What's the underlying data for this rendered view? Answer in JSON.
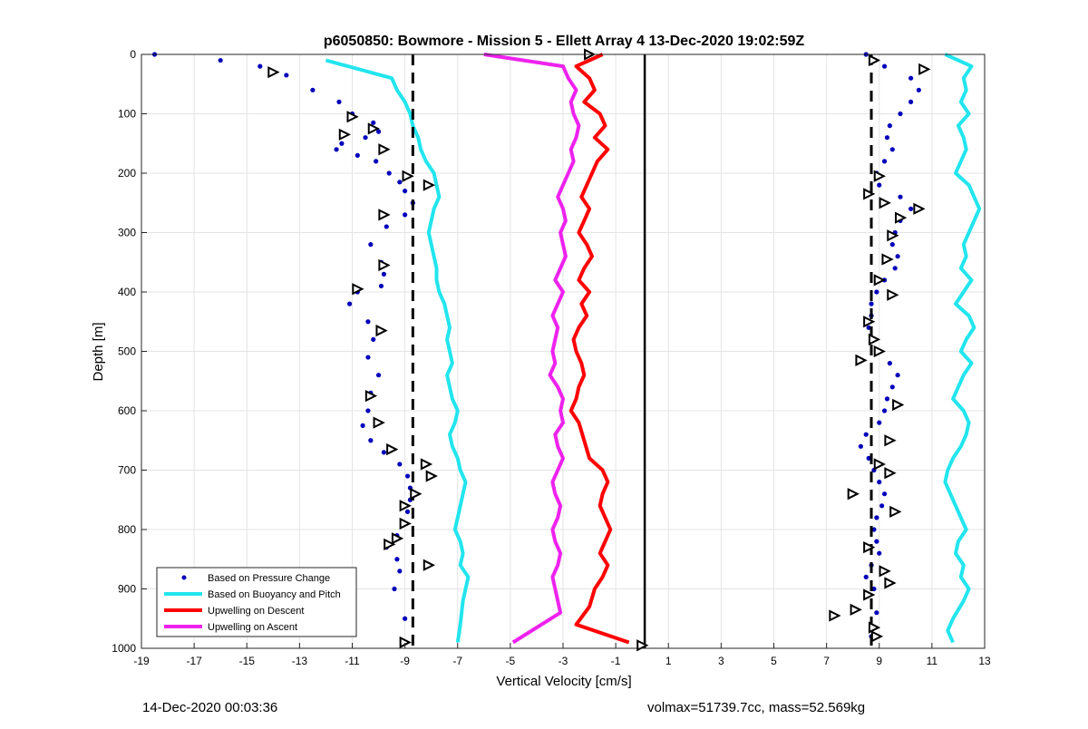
{
  "chart_data": {
    "type": "scatter",
    "title": "p6050850: Bowmore - Mission 5 - Ellett Array 4 13-Dec-2020 19:02:59Z",
    "xlabel": "Vertical Velocity [cm/s]",
    "ylabel": "Depth [m]",
    "xlim": [
      -19,
      13
    ],
    "ylim": [
      0,
      1000
    ],
    "y_reversed": true,
    "grid": true,
    "xticks": [
      -19,
      -17,
      -15,
      -13,
      -11,
      -9,
      -7,
      -5,
      -3,
      -1,
      1,
      3,
      5,
      7,
      9,
      11,
      13
    ],
    "yticks": [
      0,
      100,
      200,
      300,
      400,
      500,
      600,
      700,
      800,
      900,
      1000
    ],
    "legend_position": "bottom-left",
    "series": [
      {
        "name": "Based on Pressure Change",
        "color": "#0000bb",
        "marker": "dot",
        "groups": [
          {
            "x": [
              -18.5,
              -16.0,
              -14.5,
              -13.5,
              -12.5,
              -11.5,
              -11.0,
              -10.2,
              -10.0,
              -10.5,
              -11.4,
              -11.6,
              -10.8,
              -10.1,
              -9.6,
              -9.2,
              -9.0,
              -8.7,
              -9.0,
              -9.7,
              -10.3,
              -9.9,
              -9.8,
              -9.9,
              -10.8,
              -11.1,
              -10.4,
              -10.2,
              -10.4,
              -10.0,
              -10.3,
              -10.4,
              -10.6,
              -10.3,
              -9.8,
              -9.2,
              -8.9,
              -8.8,
              -8.8,
              -8.9,
              -9.0,
              -9.3,
              -9.7,
              -9.3,
              -9.2,
              -9.4,
              -9.0,
              -9.0
            ],
            "y": [
              0,
              10,
              20,
              35,
              60,
              80,
              100,
              115,
              130,
              140,
              150,
              160,
              170,
              180,
              200,
              215,
              230,
              250,
              270,
              290,
              320,
              350,
              370,
              390,
              400,
              420,
              450,
              480,
              510,
              540,
              570,
              600,
              625,
              650,
              670,
              690,
              710,
              730,
              750,
              770,
              790,
              810,
              830,
              850,
              870,
              900,
              950,
              990
            ]
          },
          {
            "x": [
              8.5,
              9.2,
              10.2,
              10.5,
              10.2,
              9.8,
              9.4,
              9.3,
              9.5,
              9.2,
              8.9,
              9.0,
              9.8,
              10.2,
              9.8,
              9.6,
              9.5,
              9.7,
              9.6,
              9.2,
              8.9,
              8.7,
              8.7,
              8.6,
              8.8,
              9.0,
              9.4,
              9.7,
              9.5,
              9.3,
              9.2,
              9.0,
              8.5,
              8.3,
              8.6,
              8.8,
              9.0,
              9.2,
              9.1,
              8.9,
              8.8,
              8.9,
              9.0,
              8.7,
              8.5,
              8.8,
              8.9,
              8.7
            ],
            "y": [
              0,
              20,
              40,
              60,
              80,
              100,
              120,
              140,
              160,
              180,
              200,
              220,
              240,
              260,
              280,
              300,
              320,
              340,
              360,
              380,
              400,
              420,
              440,
              460,
              480,
              500,
              520,
              540,
              560,
              580,
              600,
              620,
              640,
              660,
              680,
              700,
              720,
              740,
              760,
              780,
              800,
              820,
              840,
              860,
              880,
              900,
              940,
              980
            ]
          }
        ]
      },
      {
        "name": "Based on Buoyancy and Pitch",
        "color": "#22e5ee",
        "marker": "line",
        "groups": [
          {
            "x": [
              -12.0,
              -9.5,
              -9.3,
              -9.0,
              -8.8,
              -8.7,
              -8.5,
              -8.4,
              -8.2,
              -7.9,
              -7.8,
              -7.7,
              -7.9,
              -8.0,
              -8.1,
              -8.0,
              -7.9,
              -7.8,
              -7.8,
              -7.7,
              -7.5,
              -7.4,
              -7.3,
              -7.4,
              -7.3,
              -7.2,
              -7.4,
              -7.3,
              -7.2,
              -7.0,
              -7.1,
              -7.3,
              -7.2,
              -7.0,
              -6.9,
              -6.7,
              -6.8,
              -6.9,
              -7.0,
              -7.1,
              -6.9,
              -6.8,
              -6.9,
              -6.6,
              -6.7,
              -6.8,
              -6.9,
              -7.0
            ],
            "y": [
              10,
              40,
              60,
              80,
              100,
              120,
              140,
              160,
              180,
              200,
              220,
              240,
              260,
              280,
              300,
              320,
              340,
              360,
              380,
              400,
              420,
              440,
              460,
              480,
              500,
              520,
              540,
              560,
              580,
              600,
              620,
              640,
              660,
              680,
              700,
              720,
              740,
              760,
              780,
              800,
              820,
              840,
              860,
              880,
              900,
              920,
              960,
              990
            ]
          },
          {
            "x": [
              11.5,
              12.5,
              12.2,
              12.3,
              12.1,
              12.4,
              12.0,
              12.2,
              12.3,
              12.1,
              11.9,
              12.4,
              12.6,
              12.8,
              12.6,
              12.4,
              12.2,
              12.3,
              12.1,
              12.5,
              12.2,
              11.9,
              12.4,
              12.6,
              12.3,
              12.1,
              12.5,
              12.2,
              12.0,
              11.8,
              12.2,
              12.4,
              12.3,
              12.1,
              11.8,
              11.6,
              11.5,
              11.7,
              11.9,
              12.1,
              12.3,
              12.0,
              11.9,
              12.2,
              12.1,
              12.4,
              12.2,
              11.8,
              11.6,
              11.8
            ],
            "y": [
              0,
              20,
              40,
              60,
              80,
              100,
              120,
              140,
              160,
              180,
              200,
              220,
              240,
              260,
              280,
              300,
              320,
              340,
              360,
              380,
              400,
              420,
              440,
              460,
              480,
              500,
              520,
              540,
              560,
              580,
              600,
              620,
              640,
              660,
              680,
              700,
              720,
              740,
              760,
              780,
              800,
              820,
              840,
              860,
              880,
              900,
              920,
              950,
              970,
              990
            ]
          }
        ]
      },
      {
        "name": "Upwelling on Descent",
        "color": "#ff0000",
        "marker": "line",
        "x": [
          -1.5,
          -2.5,
          -2.0,
          -1.8,
          -2.2,
          -1.6,
          -1.4,
          -1.8,
          -1.3,
          -1.7,
          -1.9,
          -2.1,
          -2.3,
          -2.0,
          -2.2,
          -2.4,
          -2.1,
          -1.9,
          -2.2,
          -2.4,
          -2.0,
          -2.3,
          -2.1,
          -2.4,
          -2.6,
          -2.5,
          -2.3,
          -2.2,
          -2.4,
          -2.5,
          -2.7,
          -2.4,
          -2.2,
          -2.0,
          -1.5,
          -1.3,
          -1.5,
          -1.6,
          -1.4,
          -1.2,
          -1.4,
          -1.6,
          -1.3,
          -1.5,
          -1.8,
          -2.0,
          -2.5,
          -0.5
        ],
        "y": [
          0,
          20,
          40,
          60,
          80,
          100,
          120,
          140,
          160,
          180,
          200,
          220,
          240,
          260,
          280,
          300,
          320,
          340,
          360,
          380,
          400,
          420,
          440,
          460,
          480,
          500,
          520,
          540,
          560,
          580,
          600,
          620,
          650,
          680,
          700,
          720,
          740,
          760,
          780,
          800,
          820,
          840,
          860,
          880,
          900,
          930,
          960,
          990
        ]
      },
      {
        "name": "Upwelling on Ascent",
        "color": "#ee22ee",
        "marker": "line",
        "x": [
          -6.0,
          -3.0,
          -2.8,
          -2.5,
          -2.7,
          -2.6,
          -2.4,
          -2.5,
          -2.7,
          -2.6,
          -2.8,
          -3.0,
          -3.2,
          -3.0,
          -2.9,
          -3.1,
          -3.0,
          -2.9,
          -3.1,
          -3.3,
          -3.0,
          -3.2,
          -3.4,
          -3.2,
          -3.3,
          -3.4,
          -3.3,
          -3.5,
          -3.2,
          -3.0,
          -3.1,
          -3.0,
          -3.3,
          -3.2,
          -3.0,
          -3.2,
          -3.4,
          -3.3,
          -3.1,
          -3.2,
          -3.4,
          -3.3,
          -3.1,
          -3.2,
          -3.4,
          -3.3,
          -3.1,
          -4.9
        ],
        "y": [
          0,
          20,
          40,
          60,
          80,
          100,
          120,
          140,
          160,
          180,
          200,
          220,
          240,
          260,
          280,
          300,
          320,
          340,
          360,
          380,
          400,
          420,
          440,
          460,
          480,
          500,
          520,
          540,
          560,
          580,
          600,
          620,
          640,
          660,
          680,
          700,
          720,
          740,
          760,
          780,
          800,
          820,
          840,
          860,
          880,
          900,
          940,
          990
        ]
      }
    ],
    "dashed_lines_x": [
      -8.7,
      8.7
    ],
    "solid_line_x": 0.1,
    "triangle_markers": [
      {
        "x": -14.0,
        "y": 30
      },
      {
        "x": -11.0,
        "y": 105
      },
      {
        "x": -10.2,
        "y": 125
      },
      {
        "x": -11.3,
        "y": 135
      },
      {
        "x": -9.8,
        "y": 160
      },
      {
        "x": -8.9,
        "y": 205
      },
      {
        "x": -8.1,
        "y": 220
      },
      {
        "x": -9.8,
        "y": 270
      },
      {
        "x": -9.8,
        "y": 355
      },
      {
        "x": -10.8,
        "y": 395
      },
      {
        "x": -9.9,
        "y": 465
      },
      {
        "x": -10.3,
        "y": 575
      },
      {
        "x": -10.0,
        "y": 620
      },
      {
        "x": -9.5,
        "y": 665
      },
      {
        "x": -8.2,
        "y": 690
      },
      {
        "x": -8.0,
        "y": 710
      },
      {
        "x": -8.6,
        "y": 740
      },
      {
        "x": -9.0,
        "y": 760
      },
      {
        "x": -9.0,
        "y": 790
      },
      {
        "x": -9.3,
        "y": 815
      },
      {
        "x": -9.6,
        "y": 825
      },
      {
        "x": -8.1,
        "y": 860
      },
      {
        "x": -9.0,
        "y": 990
      },
      {
        "x": -2.0,
        "y": 0
      },
      {
        "x": 8.8,
        "y": 10
      },
      {
        "x": 10.7,
        "y": 25
      },
      {
        "x": 9.0,
        "y": 205
      },
      {
        "x": 8.6,
        "y": 235
      },
      {
        "x": 9.2,
        "y": 250
      },
      {
        "x": 10.5,
        "y": 260
      },
      {
        "x": 9.8,
        "y": 275
      },
      {
        "x": 9.5,
        "y": 305
      },
      {
        "x": 9.3,
        "y": 345
      },
      {
        "x": 9.0,
        "y": 380
      },
      {
        "x": 9.5,
        "y": 405
      },
      {
        "x": 8.6,
        "y": 450
      },
      {
        "x": 8.8,
        "y": 480
      },
      {
        "x": 9.0,
        "y": 500
      },
      {
        "x": 8.3,
        "y": 515
      },
      {
        "x": 9.7,
        "y": 590
      },
      {
        "x": 9.4,
        "y": 650
      },
      {
        "x": 9.0,
        "y": 690
      },
      {
        "x": 9.4,
        "y": 705
      },
      {
        "x": 8.0,
        "y": 740
      },
      {
        "x": 9.6,
        "y": 770
      },
      {
        "x": 8.6,
        "y": 830
      },
      {
        "x": 9.2,
        "y": 870
      },
      {
        "x": 9.4,
        "y": 890
      },
      {
        "x": 8.6,
        "y": 910
      },
      {
        "x": 8.1,
        "y": 935
      },
      {
        "x": 7.3,
        "y": 945
      },
      {
        "x": 8.8,
        "y": 965
      },
      {
        "x": 8.9,
        "y": 980
      },
      {
        "x": 0.0,
        "y": 995
      }
    ]
  },
  "footer": {
    "left_text": "14-Dec-2020 00:03:36",
    "right_text": "volmax=51739.7cc, mass=52.569kg"
  }
}
